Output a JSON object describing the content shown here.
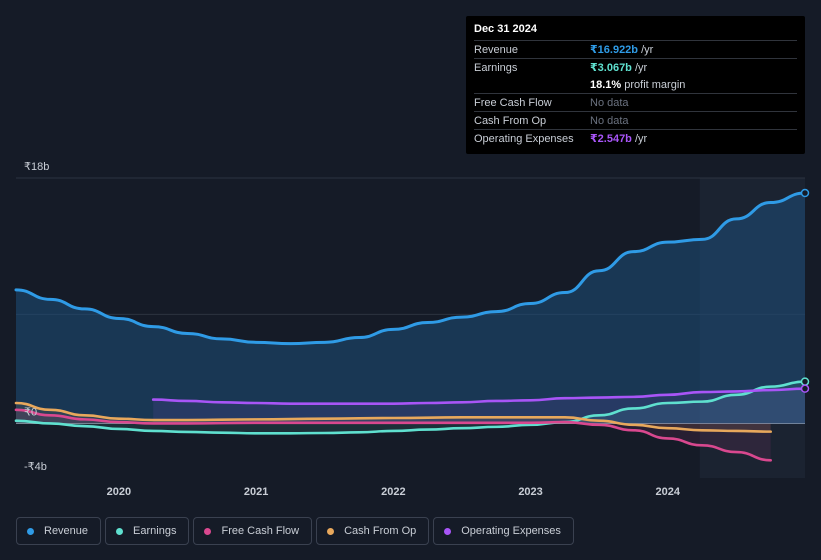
{
  "tooltip": {
    "date": "Dec 31 2024",
    "rows": [
      {
        "label": "Revenue",
        "value": "₹16.922b",
        "unit": " /yr",
        "color": "#2f9be6"
      },
      {
        "label": "Earnings",
        "value": "₹3.067b",
        "unit": " /yr",
        "color": "#5fe0cf"
      },
      {
        "label": "",
        "value": "18.1%",
        "unit": " profit margin",
        "color": "#ffffff"
      },
      {
        "label": "Free Cash Flow",
        "value": "No data",
        "unit": "",
        "color": "#6b7280"
      },
      {
        "label": "Cash From Op",
        "value": "No data",
        "unit": "",
        "color": "#6b7280"
      },
      {
        "label": "Operating Expenses",
        "value": "₹2.547b",
        "unit": " /yr",
        "color": "#a855f7"
      }
    ]
  },
  "legend": [
    {
      "label": "Revenue",
      "color": "#2f9be6"
    },
    {
      "label": "Earnings",
      "color": "#5fe0cf"
    },
    {
      "label": "Free Cash Flow",
      "color": "#d9488f"
    },
    {
      "label": "Cash From Op",
      "color": "#e8a85c"
    },
    {
      "label": "Operating Expenses",
      "color": "#a855f7"
    }
  ],
  "chart_data": {
    "type": "line",
    "ylim": [
      -4,
      18
    ],
    "xlim": [
      2019.25,
      2025.0
    ],
    "y_tick_labels": [
      {
        "value": 18,
        "label": "₹18b"
      },
      {
        "value": 0,
        "label": "₹0"
      },
      {
        "value": -4,
        "label": "-₹4b"
      }
    ],
    "x_ticks": [
      {
        "value": 2020,
        "label": "2020"
      },
      {
        "value": 2021,
        "label": "2021"
      },
      {
        "value": 2022,
        "label": "2022"
      },
      {
        "value": 2023,
        "label": "2023"
      },
      {
        "value": 2024,
        "label": "2024"
      }
    ],
    "highlight_from": 2024.0,
    "series": [
      {
        "name": "Revenue",
        "color": "#2f9be6",
        "area": true,
        "points": [
          [
            2019.25,
            9.8
          ],
          [
            2019.5,
            9.1
          ],
          [
            2019.75,
            8.4
          ],
          [
            2020.0,
            7.7
          ],
          [
            2020.25,
            7.1
          ],
          [
            2020.5,
            6.6
          ],
          [
            2020.75,
            6.2
          ],
          [
            2021.0,
            5.95
          ],
          [
            2021.25,
            5.85
          ],
          [
            2021.5,
            5.95
          ],
          [
            2021.75,
            6.3
          ],
          [
            2022.0,
            6.9
          ],
          [
            2022.25,
            7.4
          ],
          [
            2022.5,
            7.8
          ],
          [
            2022.75,
            8.2
          ],
          [
            2023.0,
            8.8
          ],
          [
            2023.25,
            9.6
          ],
          [
            2023.5,
            11.2
          ],
          [
            2023.75,
            12.6
          ],
          [
            2024.0,
            13.3
          ],
          [
            2024.25,
            13.5
          ],
          [
            2024.5,
            15.0
          ],
          [
            2024.75,
            16.2
          ],
          [
            2025.0,
            16.9
          ]
        ]
      },
      {
        "name": "Earnings",
        "color": "#5fe0cf",
        "points": [
          [
            2019.25,
            0.2
          ],
          [
            2019.5,
            0.0
          ],
          [
            2019.75,
            -0.2
          ],
          [
            2020.0,
            -0.4
          ],
          [
            2020.25,
            -0.55
          ],
          [
            2020.5,
            -0.62
          ],
          [
            2020.75,
            -0.68
          ],
          [
            2021.0,
            -0.72
          ],
          [
            2021.25,
            -0.72
          ],
          [
            2021.5,
            -0.7
          ],
          [
            2021.75,
            -0.65
          ],
          [
            2022.0,
            -0.55
          ],
          [
            2022.25,
            -0.45
          ],
          [
            2022.5,
            -0.35
          ],
          [
            2022.75,
            -0.25
          ],
          [
            2023.0,
            -0.1
          ],
          [
            2023.25,
            0.1
          ],
          [
            2023.5,
            0.6
          ],
          [
            2023.75,
            1.1
          ],
          [
            2024.0,
            1.5
          ],
          [
            2024.25,
            1.6
          ],
          [
            2024.5,
            2.1
          ],
          [
            2024.75,
            2.7
          ],
          [
            2025.0,
            3.07
          ]
        ]
      },
      {
        "name": "Free Cash Flow",
        "color": "#d9488f",
        "points": [
          [
            2019.25,
            1.0
          ],
          [
            2019.5,
            0.6
          ],
          [
            2019.75,
            0.3
          ],
          [
            2020.0,
            0.1
          ],
          [
            2020.25,
            0.0
          ],
          [
            2020.5,
            0.0
          ],
          [
            2021.0,
            0.05
          ],
          [
            2021.5,
            0.05
          ],
          [
            2022.0,
            0.05
          ],
          [
            2022.5,
            0.05
          ],
          [
            2023.0,
            0.05
          ],
          [
            2023.25,
            0.1
          ],
          [
            2023.5,
            -0.1
          ],
          [
            2023.75,
            -0.5
          ],
          [
            2024.0,
            -1.1
          ],
          [
            2024.25,
            -1.6
          ],
          [
            2024.5,
            -2.1
          ],
          [
            2024.75,
            -2.7
          ]
        ]
      },
      {
        "name": "Cash From Op",
        "color": "#e8a85c",
        "points": [
          [
            2019.25,
            1.5
          ],
          [
            2019.5,
            1.0
          ],
          [
            2019.75,
            0.6
          ],
          [
            2020.0,
            0.35
          ],
          [
            2020.25,
            0.25
          ],
          [
            2020.5,
            0.25
          ],
          [
            2021.0,
            0.3
          ],
          [
            2021.5,
            0.35
          ],
          [
            2022.0,
            0.4
          ],
          [
            2022.5,
            0.45
          ],
          [
            2023.0,
            0.45
          ],
          [
            2023.25,
            0.45
          ],
          [
            2023.5,
            0.2
          ],
          [
            2023.75,
            -0.1
          ],
          [
            2024.0,
            -0.35
          ],
          [
            2024.25,
            -0.5
          ],
          [
            2024.5,
            -0.55
          ],
          [
            2024.75,
            -0.6
          ]
        ]
      },
      {
        "name": "Operating Expenses",
        "color": "#a855f7",
        "points": [
          [
            2020.25,
            1.75
          ],
          [
            2020.5,
            1.65
          ],
          [
            2020.75,
            1.55
          ],
          [
            2021.0,
            1.5
          ],
          [
            2021.25,
            1.45
          ],
          [
            2021.5,
            1.45
          ],
          [
            2021.75,
            1.45
          ],
          [
            2022.0,
            1.45
          ],
          [
            2022.25,
            1.5
          ],
          [
            2022.5,
            1.55
          ],
          [
            2022.75,
            1.65
          ],
          [
            2023.0,
            1.7
          ],
          [
            2023.25,
            1.85
          ],
          [
            2023.5,
            1.9
          ],
          [
            2023.75,
            1.95
          ],
          [
            2024.0,
            2.1
          ],
          [
            2024.25,
            2.3
          ],
          [
            2024.5,
            2.35
          ],
          [
            2024.75,
            2.45
          ],
          [
            2025.0,
            2.55
          ]
        ]
      }
    ]
  }
}
